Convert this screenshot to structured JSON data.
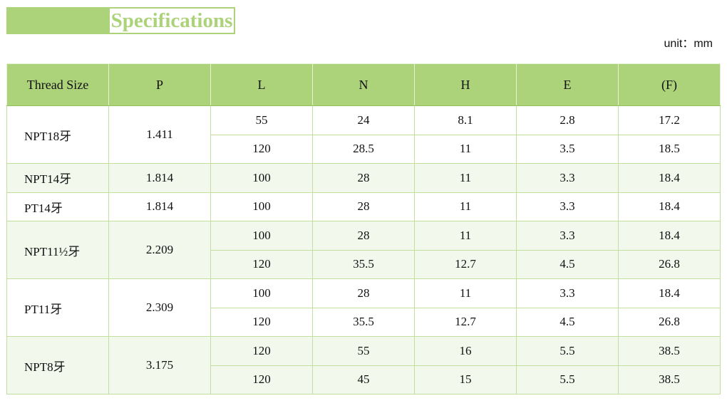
{
  "title": "Specifications",
  "unit": "unit：mm",
  "colors": {
    "accent": "#acd27a",
    "alt_row": "#f2f8ec"
  },
  "columns": [
    "Thread Size",
    "P",
    "L",
    "N",
    "H",
    "E",
    "(F)"
  ],
  "groups": [
    {
      "thread": "NPT18牙",
      "p": "1.411",
      "rows": [
        [
          "55",
          "24",
          "8.1",
          "2.8",
          "17.2"
        ],
        [
          "120",
          "28.5",
          "11",
          "3.5",
          "18.5"
        ]
      ]
    },
    {
      "thread": "NPT14牙",
      "p": "1.814",
      "rows": [
        [
          "100",
          "28",
          "11",
          "3.3",
          "18.4"
        ]
      ]
    },
    {
      "thread": "PT14牙",
      "p": "1.814",
      "rows": [
        [
          "100",
          "28",
          "11",
          "3.3",
          "18.4"
        ]
      ]
    },
    {
      "thread": "NPT11½牙",
      "p": "2.209",
      "rows": [
        [
          "100",
          "28",
          "11",
          "3.3",
          "18.4"
        ],
        [
          "120",
          "35.5",
          "12.7",
          "4.5",
          "26.8"
        ]
      ]
    },
    {
      "thread": "PT11牙",
      "p": "2.309",
      "rows": [
        [
          "100",
          "28",
          "11",
          "3.3",
          "18.4"
        ],
        [
          "120",
          "35.5",
          "12.7",
          "4.5",
          "26.8"
        ]
      ]
    },
    {
      "thread": "NPT8牙",
      "p": "3.175",
      "rows": [
        [
          "120",
          "55",
          "16",
          "5.5",
          "38.5"
        ],
        [
          "120",
          "45",
          "15",
          "5.5",
          "38.5"
        ]
      ]
    }
  ]
}
